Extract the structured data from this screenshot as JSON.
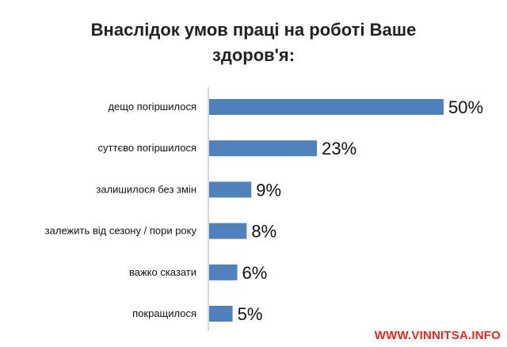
{
  "chart_data": {
    "type": "bar",
    "orientation": "horizontal",
    "title": "Внаслідок умов праці на роботі Ваше здоров'я:",
    "categories": [
      "дещо погіршилося",
      "суттєво погіршилося",
      "залишилося без змін",
      "залежить від сезону / пори року",
      "важко сказати",
      "покращилося"
    ],
    "values": [
      50,
      23,
      9,
      8,
      6,
      5
    ],
    "value_labels": [
      "50%",
      "23%",
      "9%",
      "8%",
      "6%",
      "5%"
    ],
    "xlim": [
      0,
      50
    ],
    "grid": false,
    "bar_color": "#4f81bd"
  },
  "watermark": "WWW.VINNITSA.INFO"
}
